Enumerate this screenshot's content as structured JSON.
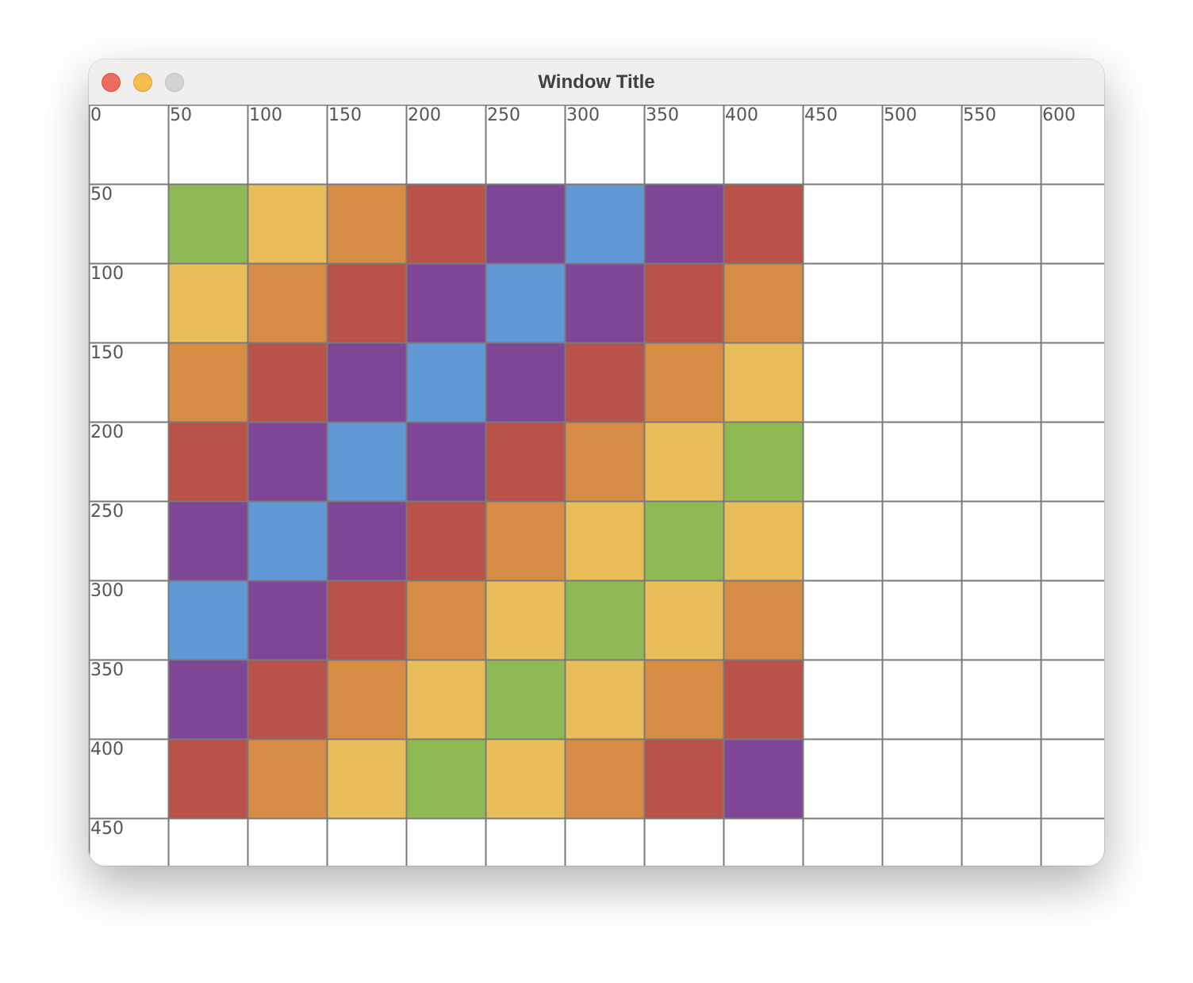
{
  "window": {
    "title": "Window Title"
  },
  "grid": {
    "x_labels": [
      "0",
      "50",
      "100",
      "150",
      "200",
      "250",
      "300",
      "350",
      "400",
      "450",
      "500",
      "550",
      "600"
    ],
    "y_labels": [
      "50",
      "100",
      "150",
      "200",
      "250",
      "300",
      "350",
      "400",
      "450"
    ],
    "line_color": "#7a7a7a"
  },
  "palette": {
    "G": "#8fb955",
    "Y": "#e8bd5a",
    "O": "#d68c45",
    "R": "#b9534a",
    "P": "#7f4597",
    "B": "#6098d6"
  },
  "cells": [
    [
      "G",
      "Y",
      "O",
      "R",
      "P",
      "B",
      "P",
      "R"
    ],
    [
      "Y",
      "O",
      "R",
      "P",
      "B",
      "P",
      "R",
      "O"
    ],
    [
      "O",
      "R",
      "P",
      "B",
      "P",
      "R",
      "O",
      "Y"
    ],
    [
      "R",
      "P",
      "B",
      "P",
      "R",
      "O",
      "Y",
      "G"
    ],
    [
      "P",
      "B",
      "P",
      "R",
      "O",
      "Y",
      "G",
      "Y"
    ],
    [
      "B",
      "P",
      "R",
      "O",
      "Y",
      "G",
      "Y",
      "O"
    ],
    [
      "P",
      "R",
      "O",
      "Y",
      "G",
      "Y",
      "O",
      "R"
    ],
    [
      "R",
      "O",
      "Y",
      "G",
      "Y",
      "O",
      "R",
      "P"
    ]
  ]
}
